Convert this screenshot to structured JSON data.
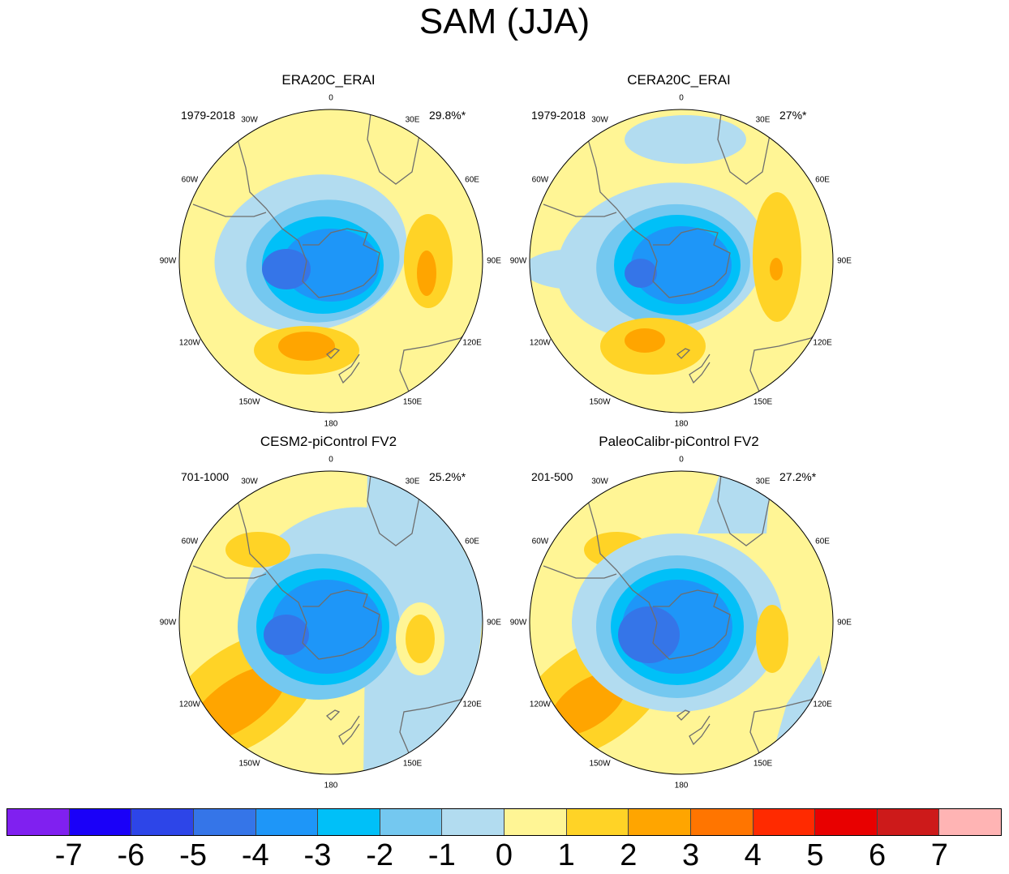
{
  "title": "SAM (JJA)",
  "longitude_labels": [
    "0",
    "30E",
    "60E",
    "90E",
    "120E",
    "150E",
    "180",
    "150W",
    "120W",
    "90W",
    "60W",
    "30W"
  ],
  "panels": [
    {
      "title": "ERA20C_ERAI",
      "period": "1979-2018",
      "variance": "29.8%*",
      "scheme": "era20c"
    },
    {
      "title": "CERA20C_ERAI",
      "period": "1979-2018",
      "variance": "27%*",
      "scheme": "cera20c"
    },
    {
      "title": "CESM2-piControl FV2",
      "period": "701-1000",
      "variance": "25.2%*",
      "scheme": "cesm2"
    },
    {
      "title": "PaleoCalibr-piControl FV2",
      "period": "201-500",
      "variance": "27.2%*",
      "scheme": "paleo"
    }
  ],
  "colorbar": {
    "colors": [
      "#8020f0",
      "#1a00f8",
      "#2d45e8",
      "#3575e8",
      "#1e96f8",
      "#00c0f8",
      "#74c8f0",
      "#b2dcf0",
      "#fff595",
      "#ffd326",
      "#ffa500",
      "#ff7500",
      "#ff2a00",
      "#e80000",
      "#cd1a1a",
      "#ffb4b4"
    ],
    "labels": [
      "-7",
      "-6",
      "-5",
      "-4",
      "-3",
      "-2",
      "-1",
      "0",
      "1",
      "2",
      "3",
      "4",
      "5",
      "6",
      "7"
    ]
  }
}
